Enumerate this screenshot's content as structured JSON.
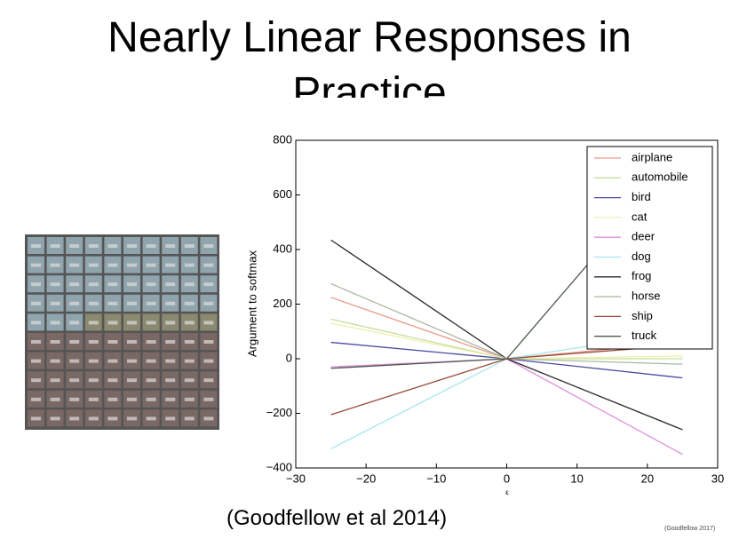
{
  "slide": {
    "title": "Nearly Linear Responses in Practice",
    "citation": "(Goodfellow et al 2014)",
    "footer": "(Goodfellow 2017)"
  },
  "chart_data": {
    "type": "line",
    "xlabel": "ε",
    "ylabel": "Argument to softmax",
    "x": [
      -25,
      0,
      25
    ],
    "series": [
      {
        "name": "airplane",
        "color": "#e89a88",
        "values": [
          225,
          0,
          60
        ]
      },
      {
        "name": "automobile",
        "color": "#c6dea0",
        "values": [
          145,
          0,
          0
        ]
      },
      {
        "name": "bird",
        "color": "#4a4aa0",
        "values": [
          60,
          0,
          -70
        ]
      },
      {
        "name": "cat",
        "color": "#eef0a8",
        "values": [
          130,
          0,
          10
        ]
      },
      {
        "name": "deer",
        "color": "#dd8ede",
        "values": [
          -30,
          0,
          -350
        ]
      },
      {
        "name": "dog",
        "color": "#a8e6ee",
        "values": [
          -330,
          0,
          100
        ]
      },
      {
        "name": "frog",
        "color": "#2a2a2a",
        "values": [
          435,
          0,
          -260
        ]
      },
      {
        "name": "horse",
        "color": "#a8b8a0",
        "values": [
          275,
          0,
          -20
        ]
      },
      {
        "name": "ship",
        "color": "#9a4a3a",
        "values": [
          -205,
          0,
          50
        ]
      },
      {
        "name": "truck",
        "color": "#4a5a4a",
        "values": [
          -35,
          0,
          750
        ]
      }
    ],
    "xlim": [
      -30,
      30
    ],
    "xticks": [
      {
        "value": -30,
        "label": "−30"
      },
      {
        "value": -20,
        "label": "−20"
      },
      {
        "value": -10,
        "label": "−10"
      },
      0,
      10,
      20,
      30
    ],
    "ylim": [
      -400,
      800
    ],
    "yticks": [
      {
        "value": -400,
        "label": "−400"
      },
      {
        "value": -200,
        "label": "−200"
      },
      0,
      200,
      400,
      600,
      800
    ],
    "grid": false,
    "legend": "upper-right"
  }
}
